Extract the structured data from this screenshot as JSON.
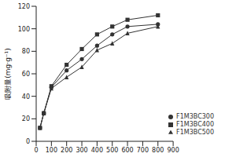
{
  "chart_data": {
    "type": "line",
    "y_label": "吸附量(mg·g⁻¹)",
    "x": [
      25,
      50,
      100,
      200,
      300,
      400,
      500,
      600,
      800
    ],
    "xlim": [
      0,
      900
    ],
    "xticks": [
      0,
      100,
      200,
      300,
      400,
      500,
      600,
      700,
      800,
      900
    ],
    "ylim": [
      0,
      120
    ],
    "yticks": [
      0,
      20,
      40,
      60,
      80,
      100,
      120
    ],
    "grid": false,
    "legend": "lower right",
    "series": [
      {
        "name": "F1M3BC400",
        "color": "#333333",
        "marker": "square",
        "values": [
          12,
          25,
          49,
          68,
          82,
          95,
          102,
          108,
          112
        ]
      },
      {
        "name": "F1M3BC300",
        "color": "#333333",
        "marker": "circle",
        "values": [
          12,
          25,
          48,
          63,
          73,
          85,
          95,
          102,
          104
        ]
      },
      {
        "name": "F1M3BC500",
        "color": "#333333",
        "marker": "triangle",
        "values": [
          12,
          25,
          47,
          57,
          66,
          81,
          87,
          96,
          102
        ]
      }
    ]
  }
}
